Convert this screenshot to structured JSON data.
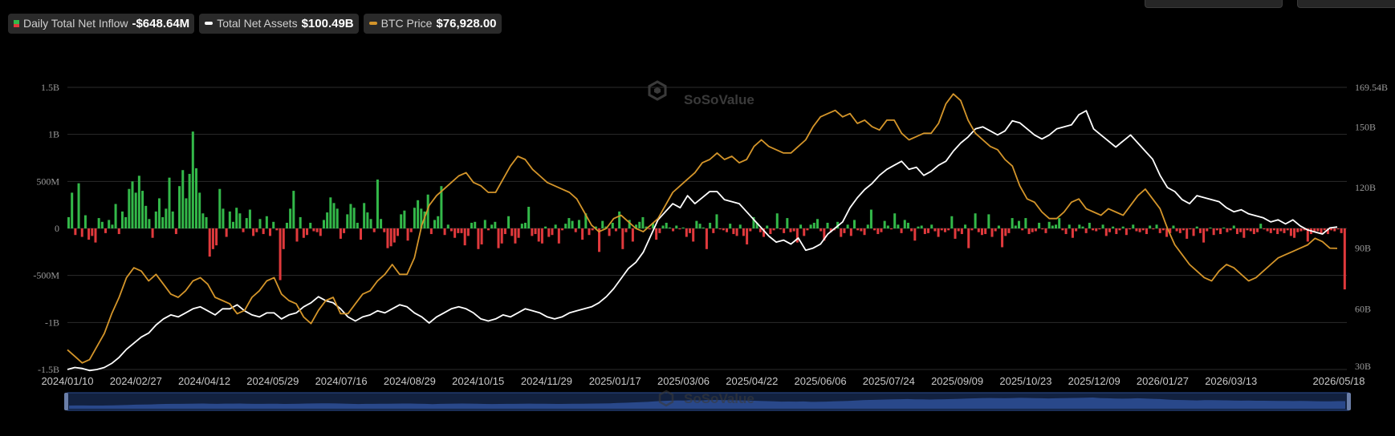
{
  "legend": [
    {
      "label": "Daily Total Net Inflow",
      "value": "-$648.64M",
      "swatch": "bar"
    },
    {
      "label": "Total Net Assets",
      "value": "$100.49B",
      "swatch": "white"
    },
    {
      "label": "BTC Price",
      "value": "$76,928.00",
      "swatch": "gold"
    }
  ],
  "watermark": "SoSoValue",
  "colors": {
    "inflow_positive": "#33b849",
    "inflow_negative": "#e0393c",
    "total_net_assets": "#ffffff",
    "btc_price": "#d4952a",
    "navigator": "#2c4d92",
    "grid": "#2b2b2b"
  },
  "chart_data": {
    "type": "bar+line",
    "start_date": "2024-01-10",
    "end_date": "2026-05-18",
    "x_tick_labels": [
      "2024/01/10",
      "2024/02/27",
      "2024/04/12",
      "2024/05/29",
      "2024/07/16",
      "2024/08/29",
      "2024/10/15",
      "2024/11/29",
      "2025/01/17",
      "2025/03/06",
      "2025/04/22",
      "2025/06/06",
      "2025/07/24",
      "2025/09/09",
      "2025/10/23",
      "2025/12/09",
      "2026/01/27",
      "2026/03/13",
      "2026/05/18"
    ],
    "left_axis": {
      "ticks": [
        "1.5B",
        "1B",
        "500M",
        "0",
        "-500M",
        "-1B",
        "-1.5B"
      ],
      "range": [
        -1500000000,
        1500000000
      ]
    },
    "right_axis": {
      "ticks": [
        "169.54B",
        "150B",
        "120B",
        "90B",
        "60B",
        "30B"
      ],
      "range": [
        30,
        169.54
      ],
      "unit": "B"
    },
    "legend_position": "top-left",
    "grid": true,
    "series": [
      {
        "name": "Daily Total Net Inflow",
        "axis": "left",
        "unit": "USD",
        "values": [
          120000000,
          380000000,
          -70000000,
          480000000,
          -90000000,
          140000000,
          -120000000,
          -80000000,
          -150000000,
          110000000,
          70000000,
          -50000000,
          90000000,
          40000000,
          260000000,
          -60000000,
          180000000,
          120000000,
          420000000,
          500000000,
          380000000,
          560000000,
          400000000,
          240000000,
          100000000,
          -100000000,
          180000000,
          320000000,
          120000000,
          210000000,
          540000000,
          180000000,
          -60000000,
          450000000,
          620000000,
          320000000,
          580000000,
          1030000000,
          640000000,
          380000000,
          160000000,
          120000000,
          -300000000,
          -220000000,
          -180000000,
          420000000,
          210000000,
          -90000000,
          180000000,
          70000000,
          220000000,
          160000000,
          -40000000,
          110000000,
          200000000,
          -80000000,
          -40000000,
          100000000,
          -60000000,
          130000000,
          -80000000,
          70000000,
          -20000000,
          -550000000,
          -220000000,
          60000000,
          210000000,
          400000000,
          -140000000,
          120000000,
          -100000000,
          -70000000,
          60000000,
          -30000000,
          -40000000,
          -80000000,
          90000000,
          170000000,
          330000000,
          270000000,
          210000000,
          -110000000,
          -50000000,
          150000000,
          260000000,
          220000000,
          60000000,
          -120000000,
          270000000,
          170000000,
          100000000,
          -40000000,
          520000000,
          100000000,
          -40000000,
          -210000000,
          -190000000,
          -150000000,
          -80000000,
          150000000,
          190000000,
          -130000000,
          -40000000,
          220000000,
          300000000,
          210000000,
          180000000,
          360000000,
          -60000000,
          90000000,
          130000000,
          450000000,
          -70000000,
          40000000,
          -30000000,
          -100000000,
          -50000000,
          -50000000,
          -180000000,
          -80000000,
          60000000,
          70000000,
          -220000000,
          -170000000,
          90000000,
          -20000000,
          40000000,
          70000000,
          -210000000,
          -160000000,
          -60000000,
          130000000,
          -80000000,
          -160000000,
          -100000000,
          50000000,
          60000000,
          230000000,
          -80000000,
          -60000000,
          -140000000,
          -160000000,
          20000000,
          -90000000,
          -70000000,
          40000000,
          -160000000,
          -20000000,
          50000000,
          110000000,
          80000000,
          -40000000,
          90000000,
          -120000000,
          160000000,
          -70000000,
          -20000000,
          20000000,
          -250000000,
          80000000,
          20000000,
          -80000000,
          60000000,
          -30000000,
          180000000,
          -220000000,
          -40000000,
          90000000,
          -140000000,
          40000000,
          70000000,
          120000000,
          20000000,
          -10000000,
          60000000,
          -120000000,
          -50000000,
          30000000,
          60000000,
          10000000,
          -30000000,
          30000000,
          -10000000,
          10000000,
          -90000000,
          -50000000,
          -140000000,
          80000000,
          50000000,
          10000000,
          -220000000,
          60000000,
          -50000000,
          150000000,
          -10000000,
          -20000000,
          -40000000,
          50000000,
          -60000000,
          -80000000,
          40000000,
          -80000000,
          -170000000,
          -30000000,
          120000000,
          60000000,
          -40000000,
          -90000000,
          30000000,
          -60000000,
          -20000000,
          160000000,
          -10000000,
          -50000000,
          110000000,
          -40000000,
          -30000000,
          -150000000,
          40000000,
          -80000000,
          -20000000,
          40000000,
          60000000,
          100000000,
          -30000000,
          -130000000,
          60000000,
          -40000000,
          -20000000,
          70000000,
          -90000000,
          -50000000,
          40000000,
          -80000000,
          90000000,
          -20000000,
          -30000000,
          -70000000,
          40000000,
          200000000,
          -20000000,
          -60000000,
          -40000000,
          80000000,
          30000000,
          -10000000,
          160000000,
          40000000,
          -50000000,
          90000000,
          60000000,
          -30000000,
          -130000000,
          20000000,
          30000000,
          -60000000,
          -50000000,
          40000000,
          -30000000,
          -90000000,
          -20000000,
          -40000000,
          -20000000,
          130000000,
          -110000000,
          -30000000,
          -60000000,
          40000000,
          -210000000,
          -20000000,
          160000000,
          -40000000,
          -70000000,
          -60000000,
          150000000,
          -90000000,
          -30000000,
          30000000,
          -200000000,
          -80000000,
          -50000000,
          110000000,
          30000000,
          80000000,
          -20000000,
          110000000,
          -60000000,
          -40000000,
          -30000000,
          60000000,
          -10000000,
          -50000000,
          70000000,
          30000000,
          40000000,
          110000000,
          -20000000,
          -60000000,
          40000000,
          -100000000,
          -30000000,
          40000000,
          20000000,
          -50000000,
          60000000,
          -20000000,
          -30000000,
          -10000000,
          40000000,
          -80000000,
          -40000000,
          20000000,
          -60000000,
          -20000000,
          20000000,
          -70000000,
          -10000000,
          40000000,
          -30000000,
          -40000000,
          -20000000,
          -60000000,
          30000000,
          -10000000,
          40000000,
          -50000000,
          -20000000,
          -90000000,
          -50000000,
          30000000,
          -30000000,
          -50000000,
          -20000000,
          -110000000,
          -10000000,
          -80000000,
          20000000,
          -50000000,
          -150000000,
          -30000000,
          10000000,
          -70000000,
          -20000000,
          -60000000,
          10000000,
          -40000000,
          -20000000,
          30000000,
          -60000000,
          -40000000,
          -100000000,
          -20000000,
          -30000000,
          -60000000,
          -40000000,
          50000000,
          -10000000,
          -30000000,
          -50000000,
          -20000000,
          -60000000,
          -30000000,
          -50000000,
          -20000000,
          -80000000,
          -100000000,
          -40000000,
          -30000000,
          -20000000,
          -140000000,
          -60000000,
          -40000000,
          -30000000,
          -50000000,
          -20000000,
          -60000000,
          -20000000,
          -30000000,
          -10000000,
          -50000000,
          -648640000
        ],
        "note_alignment": "daily_trading_days"
      },
      {
        "name": "Total Net Assets",
        "axis": "right",
        "unit": "B USD",
        "values": [
          30,
          31,
          30.5,
          29.5,
          30,
          31,
          33,
          36,
          40,
          43,
          46,
          48,
          52,
          55,
          57,
          56,
          58,
          60,
          61,
          59,
          57,
          60,
          60,
          62,
          59,
          57,
          56,
          58,
          58,
          55,
          57,
          58,
          61,
          63,
          66,
          64,
          63,
          60,
          56,
          54,
          56,
          57,
          59,
          58,
          60,
          62,
          61,
          58,
          56,
          53,
          56,
          58,
          60,
          61,
          60,
          58,
          55,
          54,
          55,
          57,
          56,
          58,
          60,
          59,
          58,
          56,
          55,
          56,
          58,
          59,
          60,
          61,
          63,
          66,
          70,
          75,
          80,
          83,
          88,
          96,
          104,
          108,
          112,
          110,
          116,
          112,
          115,
          118,
          118,
          114,
          113,
          112,
          108,
          104,
          100,
          96,
          93,
          94,
          92,
          95,
          89,
          90,
          92,
          97,
          100,
          103,
          110,
          115,
          119,
          122,
          126,
          129,
          131,
          133,
          129,
          130,
          126,
          128,
          131,
          133,
          138,
          142,
          145,
          149,
          150,
          148,
          146,
          148,
          153,
          152,
          149,
          146,
          144,
          146,
          149,
          150,
          151,
          156,
          158,
          149,
          146,
          143,
          140,
          143,
          146,
          142,
          138,
          134,
          126,
          120,
          118,
          114,
          112,
          116,
          115,
          114,
          113,
          110,
          108,
          109,
          107,
          106,
          105,
          103,
          104,
          102,
          104,
          101,
          99,
          98,
          97,
          100,
          100.49
        ],
        "value_note": "sampled approximately every 5 trading days"
      },
      {
        "name": "BTC Price",
        "axis": "right",
        "unit": "USD",
        "values": [
          46000,
          44000,
          42000,
          43000,
          47000,
          51000,
          57000,
          62000,
          68000,
          71000,
          70000,
          67000,
          69000,
          66000,
          63000,
          62000,
          64000,
          67000,
          68000,
          66000,
          62000,
          61000,
          60000,
          57000,
          58000,
          62000,
          64000,
          67000,
          68000,
          63000,
          61000,
          60000,
          56000,
          54000,
          58000,
          61000,
          62000,
          57000,
          57000,
          60000,
          63000,
          64000,
          67000,
          69000,
          72000,
          69000,
          69000,
          74000,
          84000,
          90000,
          93000,
          95000,
          97000,
          99000,
          100000,
          97000,
          96000,
          94000,
          94000,
          98000,
          102000,
          105000,
          104000,
          101000,
          99000,
          97000,
          96000,
          95000,
          94000,
          92000,
          88000,
          84000,
          82000,
          83000,
          86000,
          87000,
          85000,
          83000,
          82000,
          84000,
          86000,
          90000,
          94000,
          96000,
          98000,
          100000,
          103000,
          104000,
          106000,
          104000,
          105000,
          103000,
          104000,
          108000,
          110000,
          108000,
          107000,
          106000,
          106000,
          108000,
          110000,
          114000,
          117000,
          118000,
          119000,
          117000,
          118000,
          115000,
          116000,
          114000,
          113000,
          116000,
          116000,
          112000,
          110000,
          111000,
          112000,
          112000,
          115000,
          121000,
          124000,
          122000,
          116000,
          112000,
          110000,
          108000,
          107000,
          104000,
          102000,
          96000,
          92000,
          91000,
          88000,
          86000,
          86000,
          88000,
          91000,
          92000,
          89000,
          88000,
          87000,
          89000,
          88000,
          87000,
          90000,
          93000,
          95000,
          92000,
          89000,
          83000,
          78000,
          75000,
          72000,
          70000,
          68000,
          67000,
          70000,
          72000,
          71000,
          69000,
          67000,
          68000,
          70000,
          72000,
          74000,
          75000,
          76000,
          77000,
          78000,
          80000,
          79000,
          77000,
          76928
        ],
        "value_note": "sampled approximately every 5 trading days"
      }
    ]
  }
}
